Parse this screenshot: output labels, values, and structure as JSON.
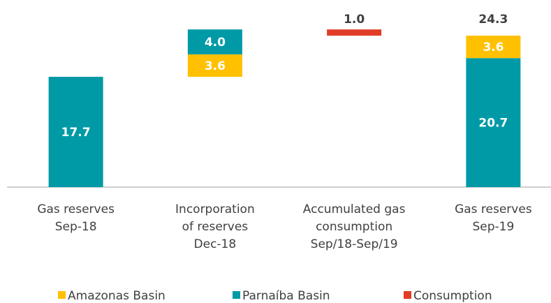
{
  "chart_data": {
    "type": "waterfall",
    "categories": [
      [
        "Gas reserves",
        "Sep-18"
      ],
      [
        "Incorporation",
        "of reserves",
        "Dec-18"
      ],
      [
        "Accumulated gas",
        "consumption",
        "Sep/18-Sep/19"
      ],
      [
        "Gas reserves",
        "Sep-19"
      ]
    ],
    "measure": [
      "total",
      "relative",
      "relative",
      "total"
    ],
    "series": [
      {
        "name": "Amazonas Basin",
        "color": "#ffc000",
        "values": [
          null,
          3.6,
          null,
          3.6
        ]
      },
      {
        "name": "Parnaíba Basin",
        "color": "#009aa6",
        "values": [
          17.7,
          4.0,
          null,
          20.7
        ],
        "value_labels": [
          "17.7",
          "4.0",
          null,
          "20.7"
        ]
      },
      {
        "name": "Consumption",
        "color": "#e03c26",
        "values": [
          null,
          null,
          -1.0,
          null
        ],
        "value_labels": [
          null,
          null,
          "1.0",
          null
        ]
      }
    ],
    "totals": [
      null,
      null,
      null,
      24.3
    ],
    "ylim": [
      0,
      27
    ],
    "legend": "bottom"
  }
}
